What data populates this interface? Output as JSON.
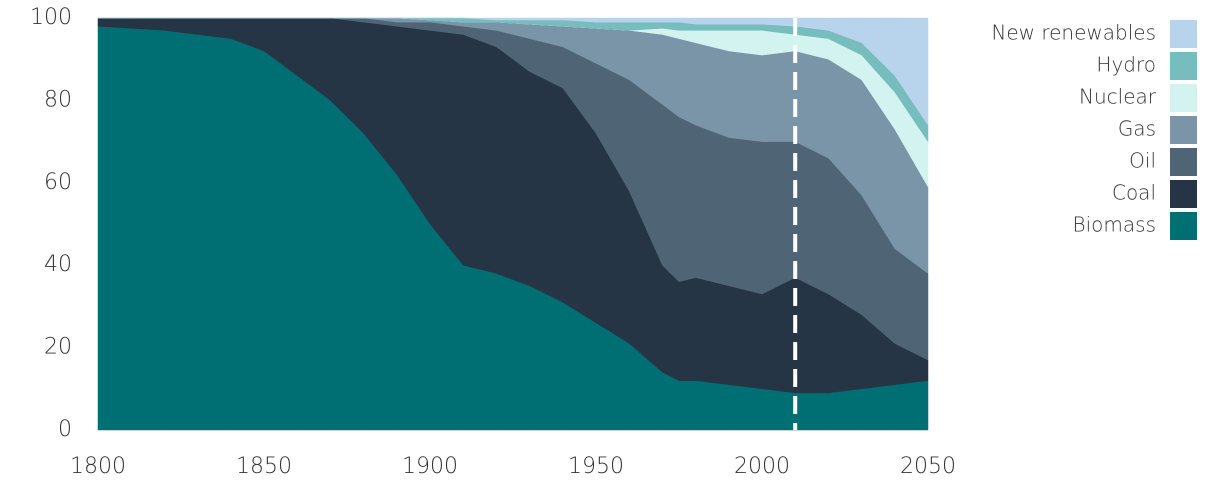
{
  "chart_data": {
    "type": "stacked_area",
    "x": [
      1800,
      1820,
      1840,
      1850,
      1860,
      1870,
      1880,
      1890,
      1900,
      1910,
      1920,
      1930,
      1940,
      1950,
      1960,
      1970,
      1975,
      1980,
      1990,
      2000,
      2010,
      2020,
      2030,
      2040,
      2050
    ],
    "series": [
      {
        "name": "Biomass",
        "color": "#006f73",
        "values": [
          98,
          97,
          95,
          92,
          86,
          80,
          72,
          62,
          50,
          40,
          38,
          35,
          31,
          26,
          21,
          14,
          12,
          12,
          11,
          10,
          9,
          9,
          10,
          11,
          12
        ]
      },
      {
        "name": "Coal",
        "color": "#253545",
        "values": [
          2,
          3,
          5,
          8,
          14,
          20,
          27,
          36,
          47,
          56,
          55,
          52,
          52,
          46,
          37,
          26,
          24,
          25,
          24,
          23,
          28,
          24,
          18,
          10,
          5
        ]
      },
      {
        "name": "Oil",
        "color": "#4f6576",
        "values": [
          0,
          0,
          0,
          0,
          0,
          0,
          1,
          1,
          2,
          2,
          4,
          8,
          10,
          17,
          27,
          39,
          40,
          37,
          36,
          37,
          33,
          33,
          29,
          23,
          21
        ]
      },
      {
        "name": "Gas",
        "color": "#7a94a8",
        "values": [
          0,
          0,
          0,
          0,
          0,
          0,
          0,
          1,
          0.5,
          1,
          2,
          3.5,
          5,
          8.5,
          12,
          17,
          19,
          20,
          21,
          21,
          22,
          24,
          28,
          29,
          21
        ]
      },
      {
        "name": "Nuclear",
        "color": "#d2f3ef",
        "values": [
          0,
          0,
          0,
          0,
          0,
          0,
          0,
          0,
          0,
          0,
          0,
          0,
          0,
          0,
          0,
          1.5,
          2,
          3,
          5,
          6,
          4,
          5,
          6,
          9,
          11
        ]
      },
      {
        "name": "Hydro",
        "color": "#77bdbd",
        "values": [
          0,
          0,
          0,
          0,
          0,
          0,
          0,
          0,
          0.5,
          1,
          0.5,
          1,
          1.5,
          1.5,
          2,
          1.5,
          2,
          1.5,
          1.5,
          1.5,
          2,
          2,
          3,
          4,
          4
        ]
      },
      {
        "name": "New renewables",
        "color": "#b8d4ec",
        "values": [
          0,
          0,
          0,
          0,
          0,
          0,
          0,
          0,
          0,
          0,
          0.5,
          0.5,
          0.5,
          1,
          1,
          1,
          1,
          1.5,
          1.5,
          1.5,
          2,
          3,
          6,
          14,
          26
        ]
      }
    ],
    "xlim": [
      1800,
      2050
    ],
    "xticks": [
      1800,
      1850,
      1900,
      1950,
      2000,
      2050
    ],
    "ylim": [
      0,
      100
    ],
    "yticks": [
      0,
      20,
      40,
      60,
      80,
      100
    ],
    "vline_x": 2010,
    "grid": false,
    "legend": "right"
  }
}
